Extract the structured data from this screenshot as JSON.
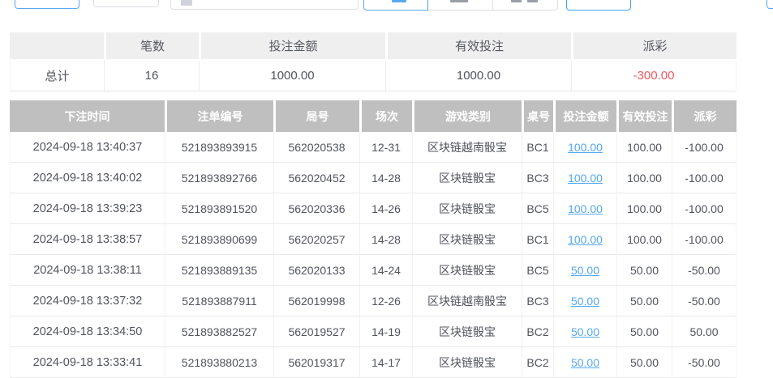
{
  "colors": {
    "accent_blue": "#3da2f2",
    "link_blue": "#54a8ee",
    "negative_red": "#ee5862",
    "table_header_gray": "#bfbfbf",
    "summary_header_gray": "#efefef"
  },
  "summary": {
    "headers": [
      "",
      "笔数",
      "投注金额",
      "有效投注",
      "派彩"
    ],
    "total_label": "总计",
    "count": "16",
    "bet_amount": "1000.00",
    "valid_bet": "1000.00",
    "payout": "-300.00"
  },
  "bet_table": {
    "headers": [
      "下注时间",
      "注单编号",
      "局号",
      "场次",
      "游戏类别",
      "桌号",
      "投注金额",
      "有效投注",
      "派彩"
    ],
    "rows": [
      [
        "2024-09-18 13:40:37",
        "521893893915",
        "562020538",
        "12-31",
        "区块链越南骰宝",
        "BC1",
        "100.00",
        "100.00",
        "-100.00"
      ],
      [
        "2024-09-18 13:40:02",
        "521893892766",
        "562020452",
        "14-28",
        "区块链骰宝",
        "BC3",
        "100.00",
        "100.00",
        "-100.00"
      ],
      [
        "2024-09-18 13:39:23",
        "521893891520",
        "562020336",
        "14-26",
        "区块链骰宝",
        "BC5",
        "100.00",
        "100.00",
        "-100.00"
      ],
      [
        "2024-09-18 13:38:57",
        "521893890699",
        "562020257",
        "14-28",
        "区块链骰宝",
        "BC1",
        "100.00",
        "100.00",
        "-100.00"
      ],
      [
        "2024-09-18 13:38:11",
        "521893889135",
        "562020133",
        "14-24",
        "区块链骰宝",
        "BC5",
        "50.00",
        "50.00",
        "-50.00"
      ],
      [
        "2024-09-18 13:37:32",
        "521893887911",
        "562019998",
        "12-26",
        "区块链越南骰宝",
        "BC3",
        "50.00",
        "50.00",
        "-50.00"
      ],
      [
        "2024-09-18 13:34:50",
        "521893882527",
        "562019527",
        "14-19",
        "区块链骰宝",
        "BC2",
        "50.00",
        "50.00",
        "50.00"
      ],
      [
        "2024-09-18 13:33:41",
        "521893880213",
        "562019317",
        "14-17",
        "区块链骰宝",
        "BC2",
        "50.00",
        "50.00",
        "-50.00"
      ]
    ]
  }
}
